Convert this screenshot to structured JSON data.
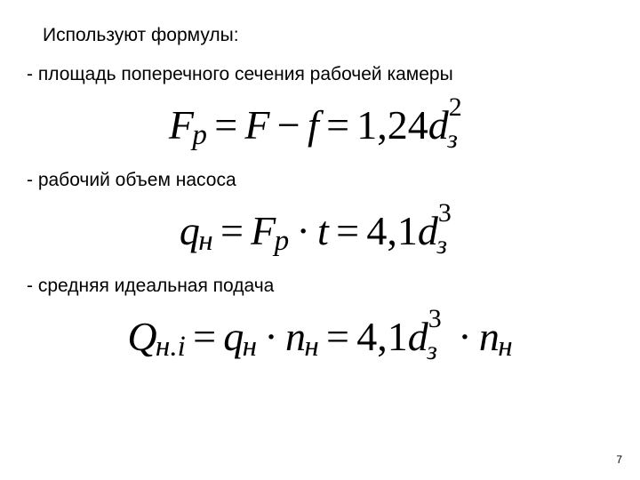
{
  "heading": "Используют формулы:",
  "line1": "- площадь поперечного сечения рабочей камеры",
  "line2": "- рабочий объем насоса",
  "line3": "- средняя идеальная подача",
  "pageNumber": "7",
  "formula1": {
    "F": "F",
    "p": "p",
    "eq": "=",
    "F2": "F",
    "minus": "−",
    "f": "f",
    "num": "1,24",
    "d": "d",
    "z": "з",
    "exp": "2"
  },
  "formula2": {
    "q": "q",
    "n": "н",
    "eq": "=",
    "F": "F",
    "p": "p",
    "dot": "·",
    "t": "t",
    "num": "4,1",
    "d": "d",
    "z": "з",
    "exp": "3"
  },
  "formula3": {
    "Q": "Q",
    "ni": "н.i",
    "eq": "=",
    "q": "q",
    "n": "н",
    "dot": "·",
    "nn": "n",
    "num": "4,1",
    "d": "d",
    "z": "з",
    "exp": "3"
  },
  "style": {
    "background": "#ffffff",
    "textColor": "#000000",
    "bodyFontSize": 21,
    "formulaFontSize": 46,
    "fontBody": "Arial",
    "fontFormula": "Times New Roman"
  }
}
